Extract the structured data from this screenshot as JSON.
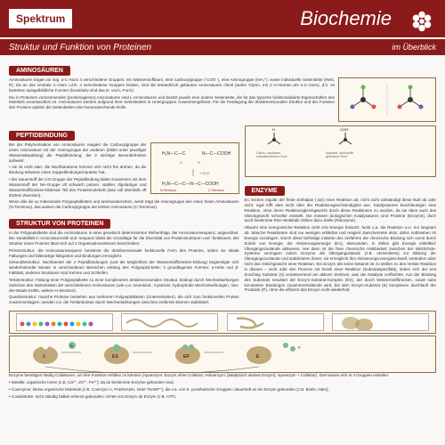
{
  "header": {
    "brand": "Spektrum",
    "title": "Biochemie",
    "subtitle": "Struktur und Funktion von Proteinen",
    "tag": "im Überblick"
  },
  "sections": {
    "aminosauren": {
      "label": "AMINOSÄUREN",
      "p1": "Aminosäuren tragen an sog. α-C-Atom 4 verschiedene Gruppen: ein Wasserstoffatom, eine Carboxylgruppe (-COO⁻), eine Aminogruppe (NH₃⁺), sowie individuelle Seitenkette (Rest, R). Da an das zentrale C-Atom i.d.R. 4 verschiedene Gruppen binden, sind die tetraedrisch gebauten Aminosäuren chiral (außer Glycin, mit 2 H-Atomen am α-C-Atom), d.h. es bestehen spiegelbildliche Formen (konstitutiv sind das D- und L-Form).",
      "p2": "Die in Proteinen vorkommenden (proteinogenen) Aminosäuren sind L-Aminosäuren und besitzt jeweils eine andere Seitenkette, die für das typische funktionalisierte Eigenschaften des Moleküls verantwortlich ist. Aminosäuren werden aufgrund ihrer Seitenketten in Untergruppen zusammengefasst. Für die Festlegung der dreidimensionalen Struktur und der Funktion des Proteins spielen die Seitenketten eine herausstechende Rolle."
    },
    "peptidbindung": {
      "label": "PEPTIDBINDUNG",
      "p1": "Bei der Polymerisation von Aminosäuren reagiert die Carboxylgruppe der einen Aminosäure mit der Aminogruppe der anderen (bildet unter jeweiliger Wasserabspaltung) die Peptidbindung; die 2 wichtige Besonderheiten aufweist:",
      "p2": "• sie ist nicht starr, die Nachbaratome können sich nicht frei drehen, da die Bindung teilweise einen Doppelbindungscharakter hat,",
      "p3": "• der Sauerstoff der CO-Gruppe der Peptidbindung bildet zusammen mit dem Wasserstoff der NH-Gruppe oft schwach polarer, stabiler, dipolartiger und Wasserstoffbrücken-bildende Teil des Proteinmoleküls (was voll ebenfalls oft letztem Zwecken).",
      "p4": "Wenn alle die so miteinander Polypeptidketten und aneinanderreihen, weist trägt die Aminogruppe des einen freien Aminosäuren (N-Terminus), das andere die Carboxylgruppe der letzten Aminosäure (C-Terminus).",
      "boxes": {
        "nterm": "N-Terminus",
        "cterm": "C-Terminus"
      },
      "sidebox": {
        "t1": "Glycin, unpolares",
        "t2": "charakteristische Rest",
        "t3": "Aspartat, hydrophile",
        "t4": "geladener Rest"
      }
    },
    "struktur": {
      "label": "STRUKTUR VON PROTEINEN",
      "p1": "In der Polypeptidkette sind die Aminosäuren in einer genetisch determinierten Reihenfolge, der Aminosäuresequenz, angeordnet. Die Variabilität in Aminosäurezahl und -sequenz bildet die Grundlage für die Diversität von Proteinstrukturen und -funktionen. Bei Struktur eines Proteins lässt sich auf 4 Organisationsebenen beschreiben:",
      "p2": "Primärstruktur: die Aminosäuresequenz bestimmt die dreidimensionale funktionelle Form des Proteins, indem sie lokale Faltungen und falterartige faltigorten und Bindungen ermöglicht.",
      "p3": "Sekundärstruktur: Nachbarster der 2 Peptidbindungen (und die Möglichkeit der Wasserstoffbrücken-bildung) begünstigte sich wiederholender Muster in verschiedenen Bereichen entlang des Polypeptid-kette; 2 grundlegende Formen: α-Helix und β-Faltblatt, anderen Strukturen sind Kehren und Schleifen.",
      "p4": "Tertiärstruktur: Faltung einer Polypeptidkette zu einer komplexeren dreidimensionalen Struktur, bedingt durch Wechselwirkungen zwischen den Seitenketten der verschiedenen Aminosäuren (wie u.a. Ionenbind., Cysteinie, hydrophobe Wechselwirkungen, Van-der-Waals-Kräfte, weitere H-Brücken).",
      "p5": "Quartärstruktur: manche Proteine bestehen aus mehreren Polypeptidketten (Untereinheiten), die sich zum funktionellen Protein zusammenlagern; werden v.a. die Tertiärstruktur durch Wechselwirkungen zwischen entfernte Ebenen stabilisiert."
    },
    "enzyme": {
      "label": "ENZYME",
      "p1": "Es reichen regulär der freier Enthalpie (-∆G) einer Reaktion ab, nicht nicht vollständigt diese läuft ab oder nicht: egal trifft aber nicht über der Reaktionsgeschwindigkeit aus. Katalysatoren beschleunigen eine Reaktion, ohne deren Reaktionsgleichgewicht durch diese Reaktionen zu wurden, da sie dann auch das Gleichgewicht schneller einstellt. Die meisten biologischen Katalysatoren sind Proteine (Enzyme), doch auch bestimmte RNA-Moleküle zählen dazu Stelle (Ribozyme).",
      "p2": "Obwohl eine exergonische Reaktion nicht erst Energie freisetzt, funkt u.a. die Reaktion u.U. nur langsam ab. Manche Reaktanten sind nur wenigen erklärbar und reagiert Zwischenreite aktiv; dahin notlösehen ist Energie zuzufügen. Durch diese befristige initiierte des verfahren die chemische Bindung sich somit durch Zufuhr von Energie, der Aktivierungsenergie (EA), überwinden. In Zellen gibt Energie mittelbild: Übergangszustände aktivieren, see dann ist die freie chemische Halsbarkeit zwischen der Wirklichste-Systeme verringern indem Enzyme die Übergangsstände (z.B. verminderte) zur Bildung der Übergangszustände und stabilisieren ihnen; sie ermöglicht ihm Aktivierungs-energieschwell, verändern aber nicht das Gleichgewicht einer Reaktion. Ein Enzym übt seine bekannt ist zu stellen zu den meiste Reaktion in diesem – nicht oder den Prozess mit herab einer Reaktion (Substratspezifität), indem sich der erst Zuschlag Substrat (S) verantwortend am aktiven Zentrum, was die Katalyse vorflüchtet. Aus der Bindung des Substrats resultiert der Enzym-Substrat-Komplex (ES), der durch Wasserstoffbrücken, sowie subs konstanten Bindungen zusammenhaltende wird, bei dem Enzym-Substrat (E) komplexen durchlauft der Produkte (P), ohne die effizient das Enzym nicht wiederholt."
    },
    "cofactor": {
      "p1": "Enzyme benötigen häufig Cofaktoren, um ihre Funktion erfüllen zu können (Apoenzym: Enzym ohne Cofaktor; Holoenzym: [katalytisch aktives Enzym]: Apoenzym + Cofaktor). Drei lassen sich in 4 Gruppen einteilen:",
      "p2": "• Metalle: organische Ionen (z.B. Ca²⁺, Zn²⁺, Fe²⁺); da an bestimmte Enzyme gebunden sind,",
      "p3": "• Coenzyme: kleine organische Moleküle (z.B. Coenzym A, FAD/NADH, NAD⁺/NADP⁺), die v.a. von E. prosthetische Gruppen: dauerhaft an ein Enzym gebunden (z.B. Biotin, Häm);",
      "p4": "• Cosubstrate: nicht ständig balkär erkennt gebunden; richtet von Enzym ab Enzym (z.B. ATP)."
    }
  },
  "colors": {
    "primary": "#8b1a1a",
    "boxborder": "#8b6f47",
    "boxbg": "#fcf8f0",
    "chain_colors": [
      "#e74c3c",
      "#3498db",
      "#f1c40f",
      "#2ecc71",
      "#9b59b6",
      "#e67e22",
      "#1abc9c",
      "#e74c3c",
      "#3498db",
      "#f1c40f",
      "#2ecc71",
      "#9b59b6"
    ],
    "enzyme_color": "#c0a878",
    "substrate_color": "#7eb89e"
  }
}
